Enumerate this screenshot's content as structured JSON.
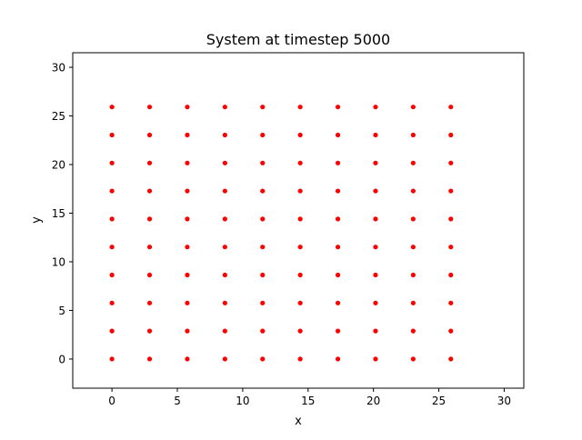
{
  "chart_data": {
    "type": "scatter",
    "title": "System at timestep 5000",
    "xlabel": "x",
    "ylabel": "y",
    "xlim": [
      -3,
      31.5
    ],
    "ylim": [
      -3,
      31.5
    ],
    "xticks": [
      0,
      5,
      10,
      15,
      20,
      25,
      30
    ],
    "yticks": [
      0,
      5,
      10,
      15,
      20,
      25,
      30
    ],
    "grid": false,
    "marker_color": "#ff0000",
    "series": [
      {
        "x_values": [
          0,
          2.88,
          5.76,
          8.64,
          11.52,
          14.4,
          17.28,
          20.16,
          23.04,
          25.92
        ],
        "y_values": [
          0,
          2.88,
          5.76,
          8.64,
          11.52,
          14.4,
          17.28,
          20.16,
          23.04,
          25.92
        ],
        "layout": "grid"
      }
    ]
  }
}
